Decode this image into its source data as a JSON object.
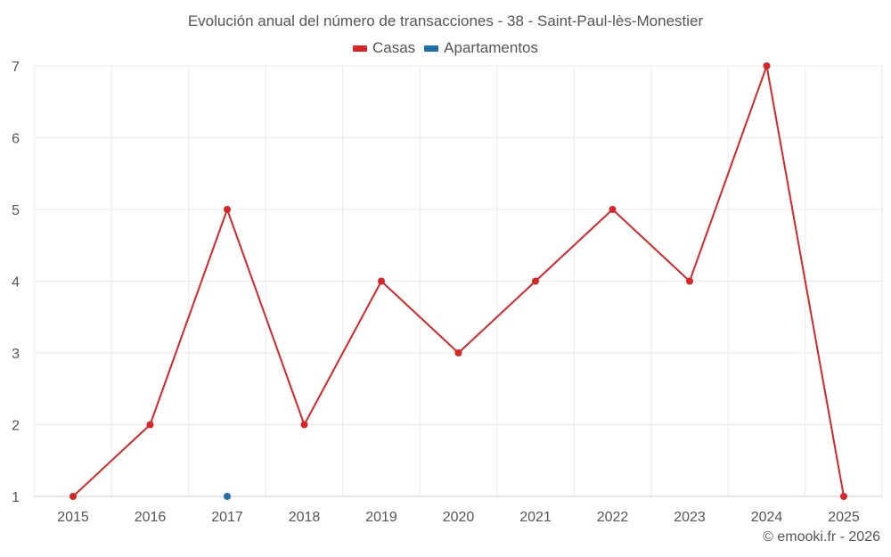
{
  "chart_data": {
    "type": "line",
    "title": "Evolución anual del número de transacciones - 38 - Saint-Paul-lès-Monestier",
    "x": [
      "2015",
      "2016",
      "2017",
      "2018",
      "2019",
      "2020",
      "2021",
      "2022",
      "2023",
      "2024",
      "2025"
    ],
    "ylim": [
      1,
      7
    ],
    "yticks": [
      1,
      2,
      3,
      4,
      5,
      6,
      7
    ],
    "grid": true,
    "legend_position": "top-center",
    "series": [
      {
        "name": "Casas",
        "color": "#d62728",
        "values": [
          1,
          2,
          5,
          2,
          4,
          3,
          4,
          5,
          4,
          7,
          1
        ]
      },
      {
        "name": "Apartamentos",
        "color": "#1f6fa8",
        "values": [
          null,
          null,
          1,
          null,
          null,
          null,
          null,
          null,
          null,
          null,
          null
        ]
      }
    ]
  },
  "credit": "© emooki.fr - 2026"
}
